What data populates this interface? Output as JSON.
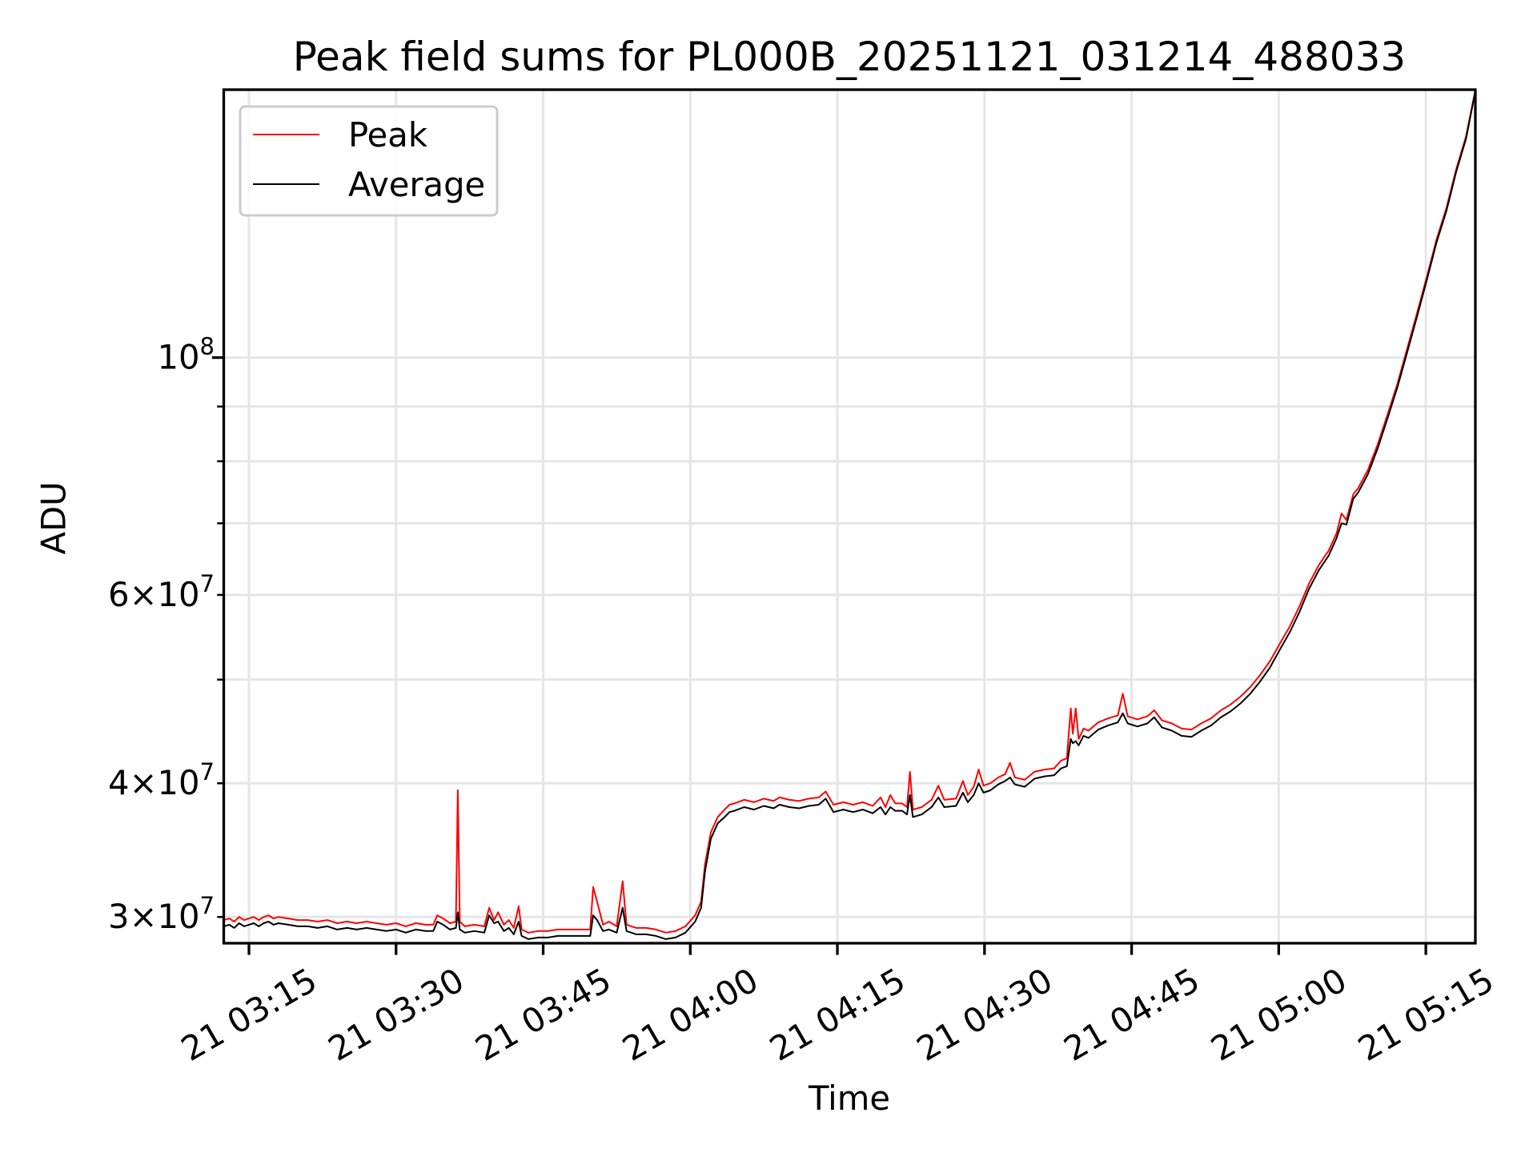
{
  "chart_data": {
    "type": "line",
    "title": "Peak field sums for PL000B_20251121_031214_488033",
    "xlabel": "Time",
    "ylabel": "ADU",
    "x_unit": "minutes after 21 03:00",
    "xlim": [
      12.43,
      140.05
    ],
    "yscale": "log",
    "ylim": [
      28350000,
      178000000
    ],
    "y_multiplier": 10000000,
    "grid": true,
    "legend_position": "top-left",
    "x_ticks": [
      {
        "value": 15,
        "label": "21 03:15"
      },
      {
        "value": 30,
        "label": "21 03:30"
      },
      {
        "value": 45,
        "label": "21 03:45"
      },
      {
        "value": 60,
        "label": "21 04:00"
      },
      {
        "value": 75,
        "label": "21 04:15"
      },
      {
        "value": 90,
        "label": "21 04:30"
      },
      {
        "value": 105,
        "label": "21 04:45"
      },
      {
        "value": 120,
        "label": "21 05:00"
      },
      {
        "value": 135,
        "label": "21 05:15"
      }
    ],
    "y_ticks": [
      {
        "value": 30000000,
        "base": "3×10",
        "exp": "7",
        "major": false
      },
      {
        "value": 40000000,
        "base": "4×10",
        "exp": "7",
        "major": false
      },
      {
        "value": 50000000,
        "base": "",
        "exp": "",
        "major": false
      },
      {
        "value": 60000000,
        "base": "6×10",
        "exp": "7",
        "major": false
      },
      {
        "value": 70000000,
        "base": "",
        "exp": "",
        "major": false
      },
      {
        "value": 80000000,
        "base": "",
        "exp": "",
        "major": false
      },
      {
        "value": 90000000,
        "base": "",
        "exp": "",
        "major": false
      },
      {
        "value": 100000000,
        "base": "10",
        "exp": "8",
        "major": true
      }
    ],
    "x": [
      12.45,
      13,
      13.5,
      14,
      14.5,
      15,
      15.5,
      16,
      16.5,
      17,
      17.5,
      18,
      19,
      20,
      21,
      22,
      23,
      24,
      25,
      26,
      27,
      28,
      29,
      30,
      31,
      32,
      33,
      33.8,
      34.2,
      34.8,
      35.5,
      36.1,
      36.3,
      36.5,
      37,
      38,
      39,
      39.5,
      40,
      40.4,
      41,
      41.5,
      42,
      42.5,
      42.8,
      43.5,
      44.5,
      45.5,
      46.5,
      49.8,
      50.1,
      50.5,
      51.1,
      51.7,
      52.5,
      53.1,
      53.5,
      54.5,
      55.5,
      56.5,
      57.5,
      58.5,
      59.5,
      60.5,
      61.1,
      61.5,
      62.1,
      62.8,
      63.5,
      64,
      64.5,
      65.5,
      66.5,
      67.5,
      68.5,
      69.1,
      70.1,
      71.1,
      72.1,
      73.1,
      73.8,
      74.6,
      75.6,
      76.6,
      77.6,
      78.6,
      79.4,
      79.9,
      80.4,
      80.9,
      81.6,
      82.1,
      82.4,
      82.7,
      83.6,
      84.6,
      85.3,
      85.9,
      87.1,
      87.8,
      88.3,
      88.9,
      89.4,
      89.9,
      90.6,
      91.4,
      92.1,
      92.6,
      93.1,
      94.1,
      95.1,
      96.1,
      97.1,
      97.8,
      98.4,
      98.8,
      99,
      99.3,
      99.6,
      100.1,
      100.6,
      101.6,
      102.6,
      103.6,
      104.1,
      104.6,
      105.6,
      106.6,
      107.3,
      108.1,
      109.1,
      110.1,
      111.1,
      112.1,
      113.1,
      114.1,
      115.1,
      116.1,
      117.1,
      118.1,
      119.1,
      120.1,
      121.1,
      122.1,
      123.1,
      124.1,
      125.1,
      125.9,
      126.4,
      126.9,
      127.6,
      128.1,
      129.1,
      130.1,
      131.1,
      132.1,
      133.1,
      134.1,
      135.1,
      136.1,
      137.1,
      138.1,
      139.1,
      140
    ],
    "series": [
      {
        "name": "Peak",
        "color": "#ff0000",
        "values": [
          2.98,
          2.99,
          2.97,
          3.0,
          2.98,
          2.99,
          3.0,
          2.98,
          3.0,
          3.01,
          2.99,
          3.0,
          2.99,
          2.98,
          2.98,
          2.97,
          2.98,
          2.96,
          2.97,
          2.96,
          2.97,
          2.96,
          2.95,
          2.96,
          2.94,
          2.96,
          2.95,
          2.95,
          3.01,
          2.99,
          2.96,
          2.97,
          3.94,
          2.97,
          2.94,
          2.95,
          2.94,
          3.06,
          2.98,
          3.03,
          2.95,
          2.98,
          2.93,
          3.07,
          2.92,
          2.9,
          2.91,
          2.91,
          2.92,
          2.92,
          3.2,
          3.1,
          2.95,
          2.97,
          2.94,
          3.24,
          2.95,
          2.93,
          2.93,
          2.92,
          2.9,
          2.91,
          2.94,
          3.01,
          3.1,
          3.36,
          3.6,
          3.72,
          3.78,
          3.82,
          3.83,
          3.86,
          3.84,
          3.87,
          3.85,
          3.88,
          3.86,
          3.85,
          3.87,
          3.88,
          3.93,
          3.82,
          3.84,
          3.82,
          3.84,
          3.81,
          3.88,
          3.8,
          3.9,
          3.83,
          3.83,
          3.8,
          4.1,
          3.78,
          3.8,
          3.86,
          3.98,
          3.86,
          3.87,
          4.02,
          3.9,
          3.97,
          4.12,
          3.98,
          4.0,
          4.05,
          4.08,
          4.18,
          4.05,
          4.03,
          4.1,
          4.12,
          4.13,
          4.2,
          4.22,
          4.7,
          4.45,
          4.7,
          4.4,
          4.5,
          4.48,
          4.56,
          4.6,
          4.63,
          4.85,
          4.62,
          4.59,
          4.62,
          4.68,
          4.58,
          4.55,
          4.5,
          4.49,
          4.55,
          4.6,
          4.68,
          4.74,
          4.82,
          4.92,
          5.05,
          5.2,
          5.4,
          5.6,
          5.85,
          6.15,
          6.4,
          6.6,
          6.85,
          7.15,
          7.05,
          7.45,
          7.55,
          7.85,
          8.3,
          8.85,
          9.45,
          10.2,
          11.0,
          11.9,
          12.9,
          13.8,
          15.0,
          16.1,
          17.7
        ]
      },
      {
        "name": "Average",
        "color": "#000000",
        "values": [
          2.94,
          2.95,
          2.93,
          2.96,
          2.94,
          2.95,
          2.96,
          2.94,
          2.96,
          2.97,
          2.95,
          2.96,
          2.95,
          2.94,
          2.94,
          2.93,
          2.94,
          2.92,
          2.93,
          2.92,
          2.93,
          2.92,
          2.91,
          2.92,
          2.9,
          2.92,
          2.91,
          2.91,
          2.97,
          2.95,
          2.92,
          2.93,
          3.03,
          2.92,
          2.9,
          2.91,
          2.9,
          3.01,
          2.96,
          2.97,
          2.91,
          2.93,
          2.89,
          2.97,
          2.88,
          2.86,
          2.87,
          2.87,
          2.88,
          2.88,
          3.01,
          2.98,
          2.91,
          2.92,
          2.9,
          3.06,
          2.91,
          2.89,
          2.89,
          2.88,
          2.86,
          2.87,
          2.9,
          2.97,
          3.06,
          3.31,
          3.55,
          3.67,
          3.72,
          3.76,
          3.77,
          3.8,
          3.78,
          3.81,
          3.79,
          3.82,
          3.8,
          3.79,
          3.81,
          3.82,
          3.87,
          3.76,
          3.78,
          3.76,
          3.78,
          3.75,
          3.8,
          3.74,
          3.8,
          3.77,
          3.77,
          3.74,
          3.9,
          3.72,
          3.74,
          3.8,
          3.88,
          3.8,
          3.81,
          3.92,
          3.84,
          3.9,
          4.0,
          3.92,
          3.94,
          3.99,
          4.02,
          4.05,
          3.99,
          3.97,
          4.04,
          4.06,
          4.07,
          4.13,
          4.15,
          4.4,
          4.36,
          4.38,
          4.34,
          4.43,
          4.41,
          4.49,
          4.53,
          4.56,
          4.65,
          4.55,
          4.52,
          4.55,
          4.61,
          4.51,
          4.48,
          4.43,
          4.42,
          4.48,
          4.53,
          4.61,
          4.67,
          4.75,
          4.85,
          4.98,
          5.13,
          5.33,
          5.53,
          5.78,
          6.08,
          6.33,
          6.53,
          6.78,
          7.0,
          6.98,
          7.38,
          7.48,
          7.78,
          8.23,
          8.78,
          9.38,
          10.12,
          10.92,
          11.82,
          12.82,
          13.72,
          14.92,
          16.02,
          17.65
        ]
      }
    ]
  }
}
